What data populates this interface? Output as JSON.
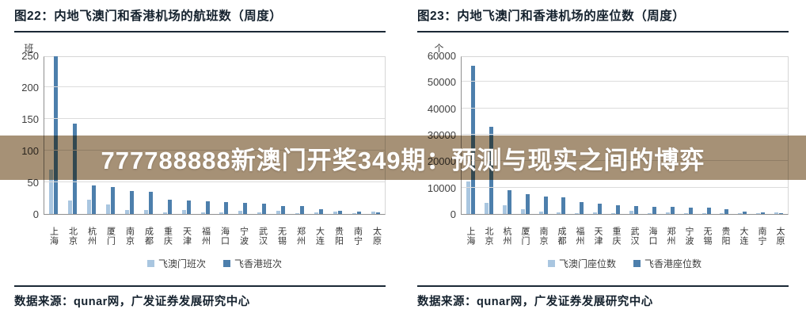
{
  "page": {
    "source_text": "数据来源：qunar网，广发证券发展研究中心"
  },
  "overlay": {
    "text": "777788888新澳门开奖349期：预测与现实之间的博弈",
    "band_color": "#a69176",
    "text_color": "#ffffff"
  },
  "colors": {
    "macau_series": "#a9c6e0",
    "hongkong_series": "#4d7fac",
    "title_text": "#15222e",
    "gridline": "#dcdcdc",
    "axis_line": "#8f8f8f"
  },
  "chart_data": [
    {
      "type": "bar",
      "title": "图22：内地飞澳门和香港机场的航班数（周度）",
      "unit_label": "班",
      "categories": [
        "上海",
        "北京",
        "杭州",
        "厦门",
        "南京",
        "成都",
        "重庆",
        "天津",
        "福州",
        "海口",
        "宁波",
        "武汉",
        "无锡",
        "郑州",
        "大连",
        "贵阳",
        "南宁",
        "太原"
      ],
      "series": [
        {
          "name": "飞澳门班次",
          "color": "#a9c6e0",
          "values": [
            70,
            21,
            23,
            15,
            6,
            6,
            3,
            6,
            2,
            2,
            5,
            3,
            5,
            1,
            3,
            4,
            1,
            4
          ]
        },
        {
          "name": "飞香港班次",
          "color": "#4d7fac",
          "values": [
            249,
            142,
            45,
            42,
            36,
            35,
            22,
            21,
            20,
            19,
            17,
            16,
            13,
            12,
            8,
            5,
            4,
            2
          ]
        }
      ],
      "ylim": [
        0,
        250
      ],
      "yticks": [
        0,
        50,
        100,
        150,
        200,
        250
      ],
      "grid": "horizontal",
      "legend_position": "bottom"
    },
    {
      "type": "bar",
      "title": "图23：内地飞澳门和香港机场的座位数（周度）",
      "unit_label": "个",
      "categories": [
        "上海",
        "北京",
        "杭州",
        "厦门",
        "南京",
        "成都",
        "福州",
        "天津",
        "重庆",
        "武汉",
        "海口",
        "郑州",
        "宁波",
        "无锡",
        "贵阳",
        "大连",
        "南宁",
        "太原"
      ],
      "series": [
        {
          "name": "飞澳门座位数",
          "color": "#a9c6e0",
          "values": [
            12400,
            4100,
            3400,
            1900,
            900,
            700,
            400,
            500,
            400,
            1100,
            300,
            700,
            400,
            200,
            400,
            300,
            200,
            500
          ]
        },
        {
          "name": "飞香港座位数",
          "color": "#4d7fac",
          "values": [
            56000,
            33000,
            9100,
            7500,
            6700,
            6200,
            4600,
            3900,
            3400,
            3100,
            2800,
            2700,
            2500,
            2400,
            1700,
            900,
            700,
            400
          ]
        }
      ],
      "ylim": [
        0,
        60000
      ],
      "yticks": [
        0,
        10000,
        20000,
        30000,
        40000,
        50000,
        60000
      ],
      "grid": "horizontal",
      "legend_position": "bottom"
    }
  ]
}
